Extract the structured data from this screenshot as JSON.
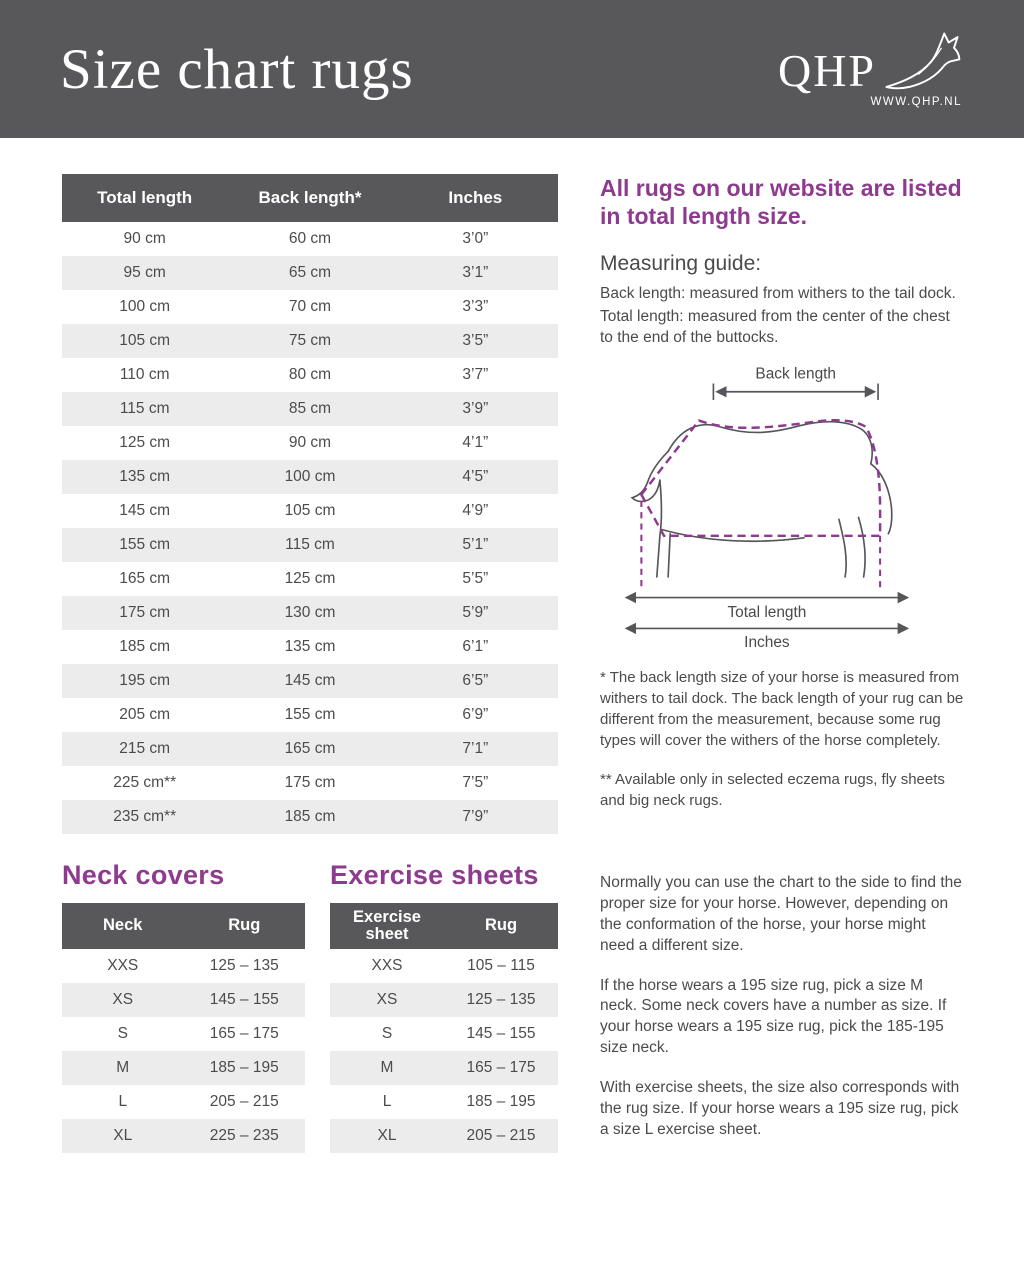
{
  "colors": {
    "banner_gray": "#58585a",
    "accent_purple": "#8e3a8f",
    "row_alternate": "#ececed"
  },
  "page": {
    "title": "Size chart rugs",
    "logo": {
      "text": "QHP",
      "url": "WWW.QHP.NL"
    }
  },
  "main_table": {
    "headers": [
      "Total length",
      "Back length*",
      "Inches"
    ],
    "rows": [
      [
        "90 cm",
        "60 cm",
        "3’0”"
      ],
      [
        "95 cm",
        "65 cm",
        "3’1”"
      ],
      [
        "100 cm",
        "70 cm",
        "3’3”"
      ],
      [
        "105 cm",
        "75 cm",
        "3’5”"
      ],
      [
        "110 cm",
        "80 cm",
        "3’7”"
      ],
      [
        "115 cm",
        "85 cm",
        "3’9”"
      ],
      [
        "125 cm",
        "90 cm",
        "4’1”"
      ],
      [
        "135 cm",
        "100 cm",
        "4’5”"
      ],
      [
        "145 cm",
        "105 cm",
        "4’9”"
      ],
      [
        "155 cm",
        "115 cm",
        "5’1”"
      ],
      [
        "165 cm",
        "125 cm",
        "5’5”"
      ],
      [
        "175 cm",
        "130 cm",
        "5’9”"
      ],
      [
        "185 cm",
        "135 cm",
        "6’1”"
      ],
      [
        "195 cm",
        "145 cm",
        "6’5”"
      ],
      [
        "205 cm",
        "155 cm",
        "6’9”"
      ],
      [
        "215 cm",
        "165 cm",
        "7’1”"
      ],
      [
        "225 cm**",
        "175 cm",
        "7’5”"
      ],
      [
        "235 cm**",
        "185 cm",
        "7’9”"
      ]
    ]
  },
  "sidebar": {
    "intro_heading": "All rugs on our website are listed in total length size.",
    "measuring_guide_heading": "Measuring guide:",
    "guide_lines": [
      "Back length: measured from withers to the tail dock.",
      "Total length: measured from the center of the chest to the end of the buttocks."
    ],
    "diagram": {
      "back_length": "Back length",
      "total_length": "Total length",
      "inches": "Inches"
    },
    "footnote_single": "* The back length size of your horse is measured from withers to tail dock. The back length of your rug can be different from the measurement, because some rug types will cover the withers of the horse completely.",
    "footnote_double": "** Available only in selected eczema rugs, fly sheets and big neck rugs."
  },
  "neck_covers": {
    "heading": "Neck covers",
    "headers": [
      "Neck",
      "Rug"
    ],
    "rows": [
      [
        "XXS",
        "125 – 135"
      ],
      [
        "XS",
        "145 – 155"
      ],
      [
        "S",
        "165 – 175"
      ],
      [
        "M",
        "185 – 195"
      ],
      [
        "L",
        "205 – 215"
      ],
      [
        "XL",
        "225 – 235"
      ]
    ]
  },
  "exercise_sheets": {
    "heading": "Exercise sheets",
    "headers": [
      "Exercise sheet",
      "Rug"
    ],
    "rows": [
      [
        "XXS",
        "105 – 115"
      ],
      [
        "XS",
        "125 – 135"
      ],
      [
        "S",
        "145 – 155"
      ],
      [
        "M",
        "165 – 175"
      ],
      [
        "L",
        "185 – 195"
      ],
      [
        "XL",
        "205 – 215"
      ]
    ]
  },
  "notes": [
    "Normally you can use the chart to the side to find the proper size for your horse.  However, depending on the conformation of the horse, your horse might need a different size.",
    "If the horse wears a 195 size rug, pick a size M neck. Some neck covers have a number as size. If your horse wears a 195 size rug, pick the 185-195 size neck.",
    "With exercise sheets, the size also corresponds with the rug size. If your horse wears a 195 size rug, pick a size L exercise sheet."
  ]
}
